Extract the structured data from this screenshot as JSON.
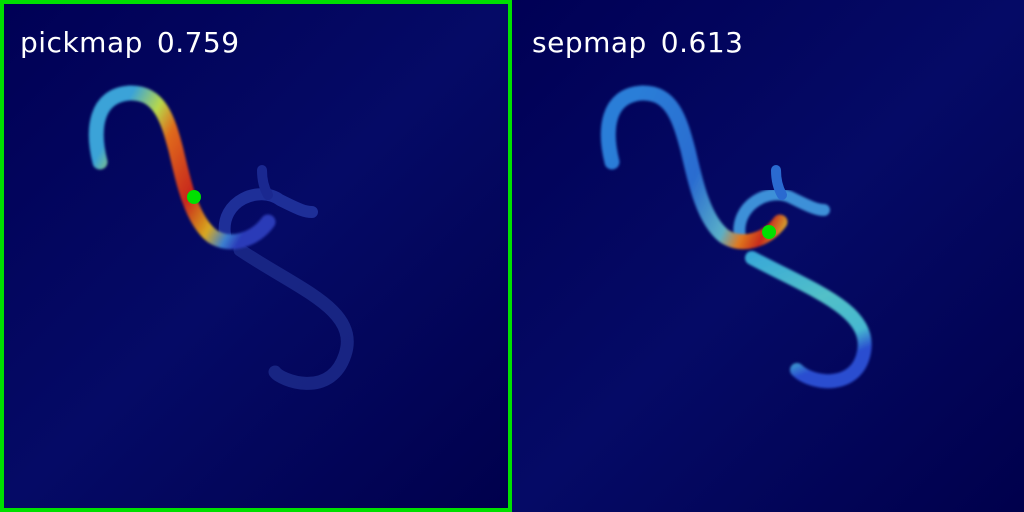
{
  "panels": [
    {
      "name": "pickmap",
      "score": "0.759",
      "selected": true
    },
    {
      "name": "sepmap",
      "score": "0.613",
      "selected": false
    }
  ],
  "colors": {
    "background": "#00004e",
    "selection_frame": "#00e000",
    "pick_point": "#00e000",
    "label_text": "#ffffff"
  }
}
